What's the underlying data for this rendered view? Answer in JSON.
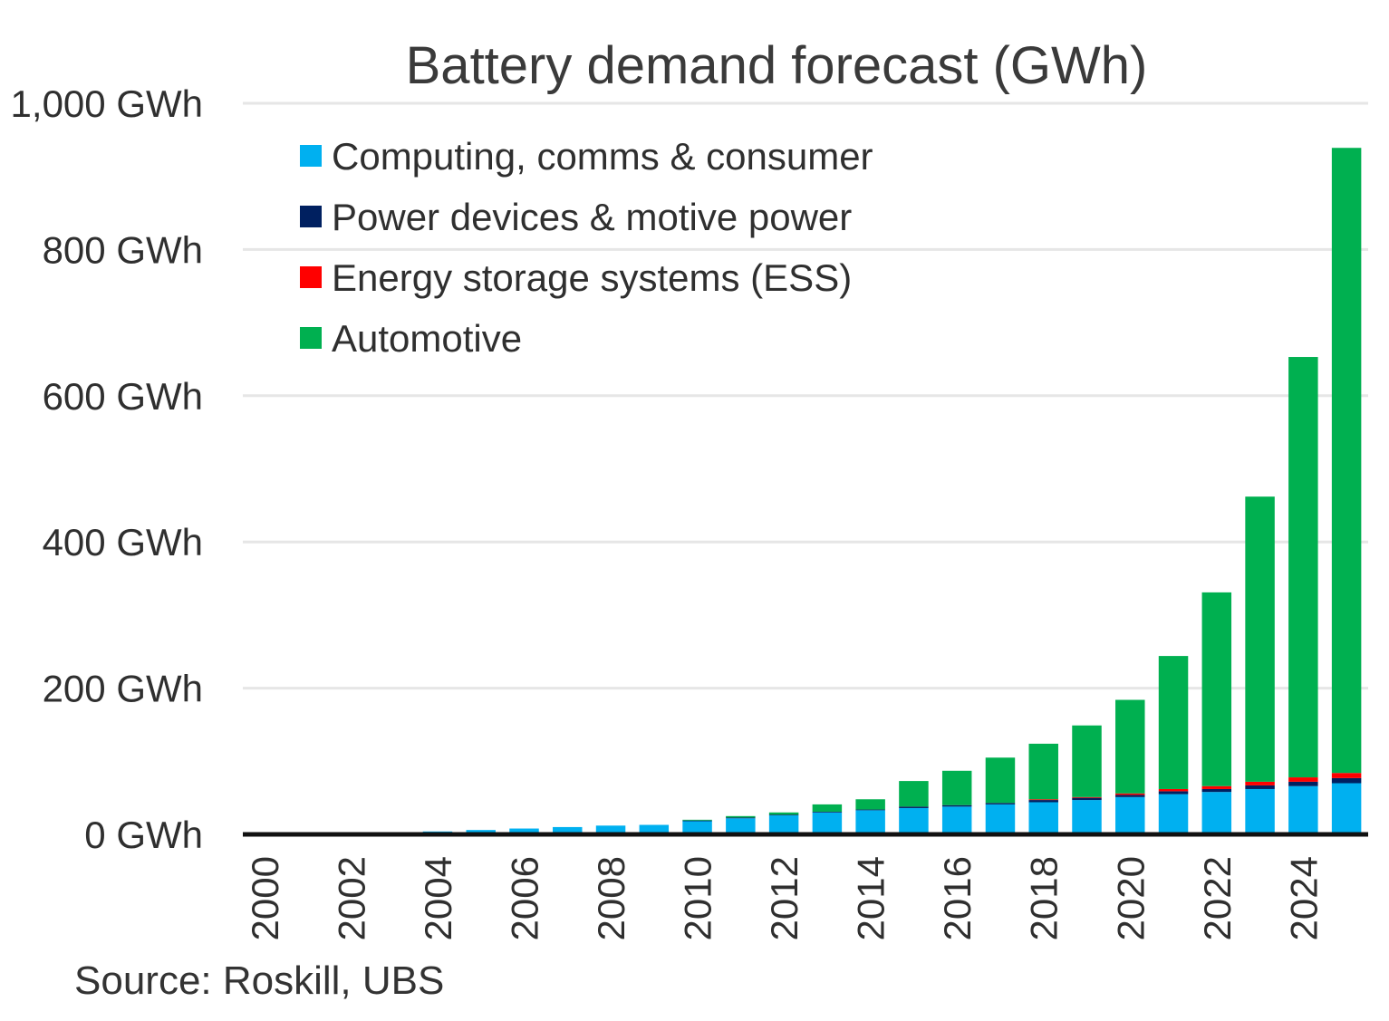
{
  "source": "Source: Roskill, UBS",
  "colors": {
    "gridline": "#e6e6e6",
    "axis": "#111111",
    "computing": "#00b0f0",
    "power": "#002060",
    "ess": "#ff0000",
    "automotive": "#00b050"
  },
  "chart_data": {
    "type": "bar",
    "stacked": true,
    "title": "Battery demand forecast (GWh)",
    "xlabel": "",
    "ylabel": "",
    "ylim": [
      0,
      1000
    ],
    "yticks": [
      0,
      200,
      400,
      600,
      800,
      1000
    ],
    "ytick_labels": [
      "0 GWh",
      "200 GWh",
      "400 GWh",
      "600 GWh",
      "800 GWh",
      "1,000 GWh"
    ],
    "xtick_labels": [
      "2000",
      "2002",
      "2004",
      "2006",
      "2008",
      "2010",
      "2012",
      "2014",
      "2016",
      "2018",
      "2020",
      "2022",
      "2024"
    ],
    "grid": true,
    "legend_position": "top-left",
    "categories": [
      "2000",
      "2001",
      "2002",
      "2003",
      "2004",
      "2005",
      "2006",
      "2007",
      "2008",
      "2009",
      "2010",
      "2011",
      "2012",
      "2013",
      "2014",
      "2015",
      "2016",
      "2017",
      "2018",
      "2019",
      "2020",
      "2021",
      "2022",
      "2023",
      "2024",
      "2025"
    ],
    "series": [
      {
        "name": "Computing, comms & consumer",
        "color": "#00b0f0",
        "values": [
          1,
          1.5,
          2,
          3,
          4,
          6,
          8,
          10,
          12,
          13,
          18,
          22,
          26,
          30,
          33,
          36,
          38,
          41,
          44,
          47,
          51,
          55,
          58,
          62,
          66,
          70
        ]
      },
      {
        "name": "Power devices & motive power",
        "color": "#002060",
        "values": [
          0,
          0,
          0,
          0,
          0,
          0,
          0,
          0,
          0,
          0,
          1,
          1,
          1,
          1,
          1,
          2,
          2,
          2,
          3,
          3,
          3,
          4,
          4,
          5,
          6,
          7
        ]
      },
      {
        "name": "Energy storage systems (ESS)",
        "color": "#ff0000",
        "values": [
          0,
          0,
          0,
          0,
          0,
          0,
          0,
          0,
          0,
          0,
          0,
          0,
          0,
          0,
          0,
          0,
          0,
          0,
          1,
          1,
          2,
          3,
          4,
          5,
          6,
          7
        ]
      },
      {
        "name": "Automotive",
        "color": "#00b050",
        "values": [
          0,
          0,
          0,
          0,
          0,
          0,
          0,
          0,
          0,
          0,
          1,
          2,
          3,
          10,
          14,
          35,
          47,
          62,
          76,
          98,
          128,
          182,
          265,
          390,
          575,
          855
        ]
      }
    ]
  }
}
